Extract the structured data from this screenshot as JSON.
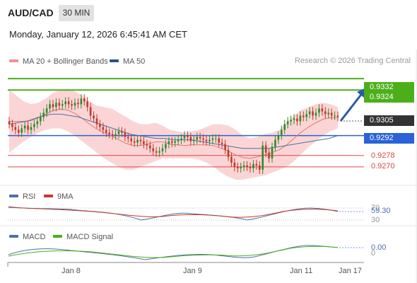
{
  "header": {
    "pair": "AUD/CAD",
    "timeframe": "30 MIN",
    "datetime": "Monday, January 12, 2026 6:45:41 AM CET",
    "copyright": "Research © 2026 Trading Central"
  },
  "legends": {
    "ma20_bb": "MA 20 + Bollinger Bands",
    "ma50": "MA 50",
    "rsi": "RSI",
    "rsi_ma": "9MA",
    "macd": "MACD",
    "macd_signal": "MACD Signal"
  },
  "colors": {
    "up_candle": "#2e8b2e",
    "down_candle": "#c0392b",
    "bollinger_fill": "#fbd5d5",
    "ma20": "#e8736f",
    "ma50": "#4f6fa8",
    "resistance": "#4caf1a",
    "pivot": "#2a62d8",
    "support": "#e0444a",
    "current_price": "#333333",
    "arrow": "#2a5aa6"
  },
  "price_labels": {
    "r2": "0.9332",
    "r1": "0.9324",
    "last": "0.9305",
    "pivot": "0.9292",
    "s1": "0.9278",
    "s2": "0.9270"
  },
  "indicators": {
    "rsi_value": "59.30",
    "rsi_level_70": "70",
    "rsi_level_30": "30",
    "macd_value": "0.00",
    "macd_zero": "0"
  },
  "x_axis": {
    "labels": [
      "Jan 8",
      "Jan 9",
      "Jan 11",
      "Jan 17"
    ]
  },
  "chart_data": {
    "type": "candlestick",
    "title": "AUD/CAD",
    "timeframe": "30 MIN",
    "y_range": [
      0.9258,
      0.934
    ],
    "levels": {
      "resistance": [
        0.9332,
        0.9324
      ],
      "pivot": 0.9292,
      "support": [
        0.9278,
        0.927
      ],
      "last_price": 0.9305
    },
    "close": [
      0.93,
      0.9298,
      0.9296,
      0.9294,
      0.9297,
      0.9299,
      0.9296,
      0.9298,
      0.93,
      0.9302,
      0.9305,
      0.9308,
      0.9311,
      0.9314,
      0.9312,
      0.9315,
      0.9313,
      0.9314,
      0.9316,
      0.9314,
      0.9313,
      0.9315,
      0.9314,
      0.9318,
      0.9316,
      0.9312,
      0.9306,
      0.9304,
      0.93,
      0.9298,
      0.9296,
      0.9294,
      0.9293,
      0.9292,
      0.9293,
      0.9295,
      0.9294,
      0.9291,
      0.929,
      0.9288,
      0.9287,
      0.9289,
      0.9288,
      0.9286,
      0.9285,
      0.9283,
      0.9281,
      0.928,
      0.9281,
      0.9283,
      0.9286,
      0.9288,
      0.9287,
      0.9288,
      0.9289,
      0.929,
      0.9292,
      0.9291,
      0.9288,
      0.9289,
      0.9291,
      0.929,
      0.9289,
      0.9288,
      0.9289,
      0.929,
      0.929,
      0.9287,
      0.9286,
      0.9282,
      0.9277,
      0.9273,
      0.927,
      0.9269,
      0.927,
      0.9271,
      0.927,
      0.9269,
      0.9272,
      0.9271,
      0.9268,
      0.9285,
      0.928,
      0.9276,
      0.9284,
      0.9289,
      0.9292,
      0.9296,
      0.93,
      0.9302,
      0.9303,
      0.9304,
      0.9302,
      0.9306,
      0.9305,
      0.9307,
      0.9309,
      0.9306,
      0.9308,
      0.9311,
      0.9309,
      0.9307,
      0.9308,
      0.9306,
      0.9306,
      0.9305
    ],
    "bollinger_upper": [
      0.9324,
      0.932,
      0.9316,
      0.9314,
      0.9315,
      0.9318,
      0.9322,
      0.9324,
      0.9325,
      0.9323,
      0.932,
      0.9316,
      0.9313,
      0.9312,
      0.9311,
      0.9308,
      0.9305,
      0.9302,
      0.93,
      0.93,
      0.9301,
      0.9299,
      0.9296,
      0.9295,
      0.9294,
      0.9295,
      0.9296,
      0.9298,
      0.93,
      0.93,
      0.9299,
      0.9296,
      0.9292,
      0.929,
      0.9291,
      0.9293,
      0.9294,
      0.9296,
      0.9301,
      0.9306,
      0.931,
      0.9312,
      0.9314,
      0.9315,
      0.9314,
      0.9312
    ],
    "bollinger_lower": [
      0.928,
      0.9284,
      0.9288,
      0.9291,
      0.9294,
      0.9296,
      0.9297,
      0.9297,
      0.9295,
      0.9292,
      0.9288,
      0.9284,
      0.928,
      0.9276,
      0.9273,
      0.927,
      0.9268,
      0.9268,
      0.927,
      0.9272,
      0.9274,
      0.9276,
      0.9276,
      0.9276,
      0.9276,
      0.9276,
      0.9275,
      0.9273,
      0.927,
      0.9266,
      0.9263,
      0.9261,
      0.9261,
      0.9262,
      0.9263,
      0.9264,
      0.9266,
      0.9268,
      0.927,
      0.9274,
      0.9279,
      0.9284,
      0.9288,
      0.9292,
      0.9295,
      0.9297
    ],
    "ma50": [
      0.93,
      0.9301,
      0.9302,
      0.9304,
      0.9306,
      0.9307,
      0.9307,
      0.9306,
      0.9305,
      0.9303,
      0.9301,
      0.9299,
      0.9297,
      0.9295,
      0.9293,
      0.9292,
      0.9291,
      0.929,
      0.929,
      0.9289,
      0.9289,
      0.9289,
      0.9288,
      0.9287,
      0.9286,
      0.9285,
      0.9284,
      0.9283,
      0.9283,
      0.9283,
      0.9283,
      0.9284,
      0.9285,
      0.9286,
      0.9287,
      0.9288,
      0.9289,
      0.929,
      0.9292
    ]
  }
}
